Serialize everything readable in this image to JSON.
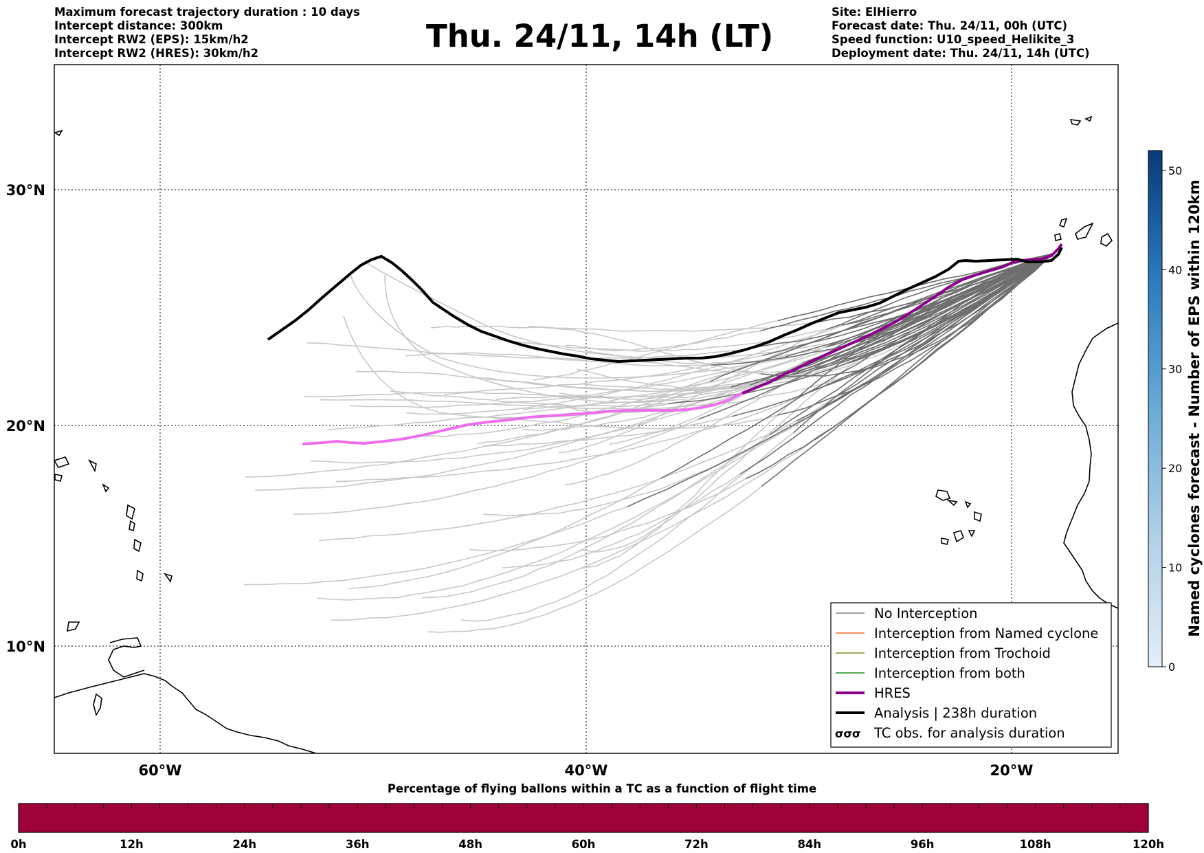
{
  "header": {
    "left_lines": [
      "Maximum forecast trajectory duration : 10 days",
      "Intercept distance: 300km",
      "Intercept RW2 (EPS):  15km/h2",
      "Intercept RW2 (HRES): 30km/h2"
    ],
    "title": "Thu. 24/11, 14h (LT)",
    "right_lines": [
      "Site: ElHierro",
      "Forecast date: Thu. 24/11, 00h (UTC)",
      "Speed function: U10_speed_Helikite_3",
      "Deployment date: Thu. 24/11, 14h (UTC)"
    ]
  },
  "map": {
    "lon_labels": [
      "60°W",
      "40°W",
      "20°W"
    ],
    "lat_labels": [
      "30°N",
      "20°N",
      "10°N"
    ]
  },
  "legend": {
    "items": [
      {
        "label": "No Interception",
        "color": "#808080",
        "style": "thin"
      },
      {
        "label": "Interception from Named cyclone",
        "color": "#ff6a2a",
        "style": "thin"
      },
      {
        "label": "Interception from Trochoid",
        "color": "#8a8a2a",
        "style": "thin"
      },
      {
        "label": "Interception from both",
        "color": "#1f8a1f",
        "style": "thin"
      },
      {
        "label": "HRES",
        "color": "#8b008b",
        "style": "thick"
      },
      {
        "label": "Analysis | 238h duration",
        "color": "#000000",
        "style": "thick"
      },
      {
        "label": "TC obs. for analysis duration",
        "color": "#000000",
        "style": "symbol"
      }
    ]
  },
  "colorbar": {
    "label": "Named cyclones forecast - Number of EPS within 120km",
    "ticks": [
      "0",
      "10",
      "20",
      "30",
      "40",
      "50"
    ],
    "max": 52
  },
  "timeline": {
    "title": "Percentage of flying ballons within a TC as a function of flight time",
    "ticks": [
      "0h",
      "12h",
      "24h",
      "36h",
      "48h",
      "60h",
      "72h",
      "84h",
      "96h",
      "108h",
      "120h"
    ],
    "color": "#9e003a"
  }
}
